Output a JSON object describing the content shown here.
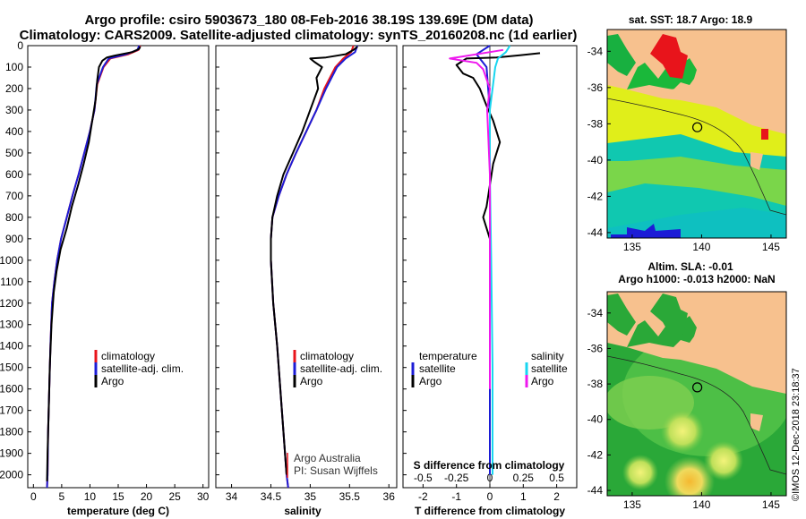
{
  "title": {
    "line1": "Argo profile: csiro 5903673_180 08-Feb-2016 38.19S 139.69E (DM data)",
    "line2": "Climatology: CARS2009. Satellite-adjusted climatology: synTS_20160208.nc (1d earlier)"
  },
  "colors": {
    "climatology": "#e8141b",
    "satellite": "#1c1cd6",
    "argo": "#000000",
    "sat_salinity": "#19d6f0",
    "argo_salinity": "#ee18ee"
  },
  "chart_data": [
    {
      "type": "line",
      "id": "temperature",
      "xlabel": "temperature (deg C)",
      "ylabel": "",
      "xlim": [
        -1,
        31
      ],
      "ylim": [
        2060,
        0
      ],
      "xticks": [
        "0",
        "5",
        "10",
        "15",
        "20",
        "25",
        "30"
      ],
      "yticks": [
        "0",
        "100",
        "200",
        "300",
        "400",
        "500",
        "600",
        "700",
        "800",
        "900",
        "1000",
        "1100",
        "1200",
        "1300",
        "1400",
        "1500",
        "1600",
        "1700",
        "1800",
        "1900",
        "2000"
      ],
      "legend": {
        "position": "middle-right",
        "entries": [
          "climatology",
          "satellite-adj. clim.",
          "Argo"
        ]
      },
      "series": [
        {
          "name": "climatology",
          "points": [
            [
              18.9,
              0
            ],
            [
              18.6,
              20
            ],
            [
              16.8,
              40
            ],
            [
              13.6,
              60
            ],
            [
              12.4,
              100
            ],
            [
              11.3,
              180
            ],
            [
              10.8,
              300
            ],
            [
              10.0,
              400
            ],
            [
              9.0,
              500
            ],
            [
              8.0,
              600
            ],
            [
              6.9,
              700
            ],
            [
              5.9,
              800
            ],
            [
              4.9,
              900
            ],
            [
              4.2,
              1000
            ],
            [
              3.7,
              1100
            ],
            [
              3.3,
              1200
            ],
            [
              3.0,
              1400
            ],
            [
              2.8,
              1600
            ],
            [
              2.6,
              1800
            ],
            [
              2.5,
              2000
            ],
            [
              2.4,
              2060
            ]
          ]
        },
        {
          "name": "satellite-adj. clim.",
          "points": [
            [
              18.7,
              0
            ],
            [
              18.4,
              20
            ],
            [
              16.4,
              40
            ],
            [
              13.3,
              60
            ],
            [
              12.3,
              100
            ],
            [
              11.2,
              180
            ],
            [
              10.8,
              300
            ],
            [
              10.0,
              400
            ],
            [
              9.0,
              500
            ],
            [
              8.0,
              600
            ],
            [
              6.9,
              700
            ],
            [
              5.9,
              800
            ],
            [
              4.9,
              900
            ],
            [
              4.2,
              1000
            ],
            [
              3.7,
              1100
            ],
            [
              3.3,
              1200
            ],
            [
              3.0,
              1400
            ],
            [
              2.8,
              1600
            ],
            [
              2.6,
              1800
            ],
            [
              2.5,
              2000
            ],
            [
              2.4,
              2060
            ]
          ]
        },
        {
          "name": "Argo",
          "points": [
            [
              18.9,
              5
            ],
            [
              18.7,
              15
            ],
            [
              17.5,
              30
            ],
            [
              14.6,
              45
            ],
            [
              13.0,
              55
            ],
            [
              12.2,
              70
            ],
            [
              11.6,
              100
            ],
            [
              11.3,
              160
            ],
            [
              11.0,
              250
            ],
            [
              10.4,
              350
            ],
            [
              9.8,
              450
            ],
            [
              8.9,
              550
            ],
            [
              7.9,
              650
            ],
            [
              6.8,
              750
            ],
            [
              5.9,
              850
            ],
            [
              4.8,
              950
            ],
            [
              4.1,
              1050
            ],
            [
              3.6,
              1150
            ],
            [
              3.2,
              1300
            ],
            [
              2.9,
              1500
            ],
            [
              2.7,
              1700
            ],
            [
              2.5,
              1900
            ],
            [
              2.4,
              2030
            ]
          ]
        }
      ]
    },
    {
      "type": "line",
      "id": "salinity",
      "xlabel": "salinity",
      "xlim": [
        33.8,
        36.1
      ],
      "ylim": [
        2060,
        0
      ],
      "xticks": [
        "34",
        "34.5",
        "35",
        "35.5",
        "36"
      ],
      "legend": {
        "position": "middle-right",
        "entries": [
          "climatology",
          "satellite-adj. clim.",
          "Argo"
        ]
      },
      "annotation": [
        "Argo Australia",
        "PI: Susan Wijffels"
      ],
      "series": [
        {
          "name": "climatology",
          "points": [
            [
              35.55,
              0
            ],
            [
              35.52,
              30
            ],
            [
              35.42,
              60
            ],
            [
              35.32,
              100
            ],
            [
              35.18,
              200
            ],
            [
              35.08,
              300
            ],
            [
              34.95,
              400
            ],
            [
              34.82,
              500
            ],
            [
              34.7,
              600
            ],
            [
              34.6,
              700
            ],
            [
              34.52,
              800
            ],
            [
              34.5,
              900
            ],
            [
              34.5,
              1000
            ],
            [
              34.53,
              1200
            ],
            [
              34.58,
              1400
            ],
            [
              34.62,
              1600
            ],
            [
              34.66,
              1800
            ],
            [
              34.7,
              2000
            ],
            [
              34.72,
              2060
            ]
          ]
        },
        {
          "name": "satellite-adj. clim.",
          "points": [
            [
              35.6,
              0
            ],
            [
              35.57,
              30
            ],
            [
              35.45,
              60
            ],
            [
              35.34,
              100
            ],
            [
              35.2,
              200
            ],
            [
              35.08,
              300
            ],
            [
              34.95,
              400
            ],
            [
              34.82,
              500
            ],
            [
              34.7,
              600
            ],
            [
              34.6,
              700
            ],
            [
              34.52,
              800
            ],
            [
              34.5,
              900
            ],
            [
              34.5,
              1000
            ],
            [
              34.53,
              1200
            ],
            [
              34.58,
              1400
            ],
            [
              34.62,
              1600
            ],
            [
              34.66,
              1800
            ],
            [
              34.7,
              2000
            ],
            [
              34.72,
              2060
            ]
          ]
        },
        {
          "name": "Argo",
          "points": [
            [
              35.6,
              5
            ],
            [
              35.55,
              20
            ],
            [
              35.45,
              40
            ],
            [
              35.2,
              55
            ],
            [
              35.0,
              60
            ],
            [
              35.05,
              75
            ],
            [
              35.15,
              100
            ],
            [
              35.08,
              150
            ],
            [
              35.1,
              200
            ],
            [
              35.0,
              300
            ],
            [
              34.9,
              400
            ],
            [
              34.78,
              500
            ],
            [
              34.66,
              600
            ],
            [
              34.58,
              700
            ],
            [
              34.52,
              800
            ],
            [
              34.5,
              900
            ],
            [
              34.5,
              1000
            ],
            [
              34.53,
              1200
            ],
            [
              34.58,
              1400
            ],
            [
              34.62,
              1600
            ],
            [
              34.66,
              1800
            ],
            [
              34.7,
              2000
            ]
          ]
        }
      ]
    },
    {
      "type": "line",
      "id": "difference",
      "xlabel": "T difference from climatology",
      "xlabel_top": "S difference from climatology",
      "xlim": [
        -2.6,
        2.6
      ],
      "ylim": [
        2060,
        0
      ],
      "xticks": [
        "-2",
        "-1",
        "0",
        "1",
        "2"
      ],
      "xticks_top": [
        "-0.5",
        "-0.25",
        "0",
        "0.25",
        "0.5"
      ],
      "legend_left": {
        "title": "temperature",
        "entries": [
          "satellite",
          "Argo"
        ]
      },
      "legend_right": {
        "title": "salinity",
        "entries": [
          "satellite",
          "Argo"
        ]
      },
      "series": [
        {
          "name": "T satellite",
          "points": [
            [
              0,
              0
            ],
            [
              -0.2,
              20
            ],
            [
              -0.4,
              40
            ],
            [
              -0.3,
              60
            ],
            [
              -0.1,
              100
            ],
            [
              -0.05,
              200
            ],
            [
              0,
              300
            ],
            [
              0,
              600
            ],
            [
              0,
              1000
            ],
            [
              0,
              2000
            ]
          ]
        },
        {
          "name": "T Argo",
          "points": [
            [
              1.5,
              35
            ],
            [
              0.9,
              45
            ],
            [
              0.2,
              55
            ],
            [
              -0.7,
              60
            ],
            [
              -1.0,
              90
            ],
            [
              -0.8,
              130
            ],
            [
              -0.5,
              150
            ],
            [
              -0.3,
              200
            ],
            [
              -0.1,
              280
            ],
            [
              0.1,
              350
            ],
            [
              0.3,
              450
            ],
            [
              0.1,
              550
            ],
            [
              0,
              650
            ],
            [
              -0.1,
              750
            ],
            [
              -0.2,
              800
            ],
            [
              0,
              900
            ],
            [
              0,
              1100
            ]
          ]
        },
        {
          "name": "S satellite",
          "points": [
            [
              0.15,
              0
            ],
            [
              0.12,
              30
            ],
            [
              0.06,
              60
            ],
            [
              0.04,
              100
            ],
            [
              0.02,
              200
            ],
            [
              0,
              300
            ],
            [
              0,
              600
            ],
            [
              0.01,
              1000
            ],
            [
              0.02,
              1500
            ],
            [
              0.02,
              2000
            ]
          ]
        },
        {
          "name": "S Argo",
          "points": [
            [
              0.1,
              20
            ],
            [
              -0.3,
              60
            ],
            [
              -0.1,
              80
            ],
            [
              -0.05,
              110
            ],
            [
              0,
              200
            ],
            [
              -0.02,
              300
            ],
            [
              0,
              600
            ],
            [
              0,
              1000
            ],
            [
              0,
              1500
            ],
            [
              0,
              1600
            ]
          ]
        }
      ]
    }
  ],
  "maps": {
    "sst": {
      "title": "sat. SST: 18.7 Argo: 18.9",
      "xticks": [
        "135",
        "140",
        "145"
      ],
      "yticks": [
        "-34",
        "-36",
        "-38",
        "-40",
        "-42",
        "-44"
      ],
      "marker": {
        "lon": 139.69,
        "lat": -38.19
      }
    },
    "sla": {
      "title1": "Altim. SLA: -0.01",
      "title2": "Argo h1000: -0.013 h2000: NaN",
      "xticks": [
        "135",
        "140",
        "145"
      ],
      "yticks": [
        "-34",
        "-36",
        "-38",
        "-40",
        "-42",
        "-44"
      ],
      "marker": {
        "lon": 139.69,
        "lat": -38.19
      }
    },
    "xlim": [
      133.2,
      146.1
    ],
    "ylim": [
      -44.3,
      -32.8
    ]
  },
  "credit": "©IMOS 12-Dec-2018 23:18:37"
}
